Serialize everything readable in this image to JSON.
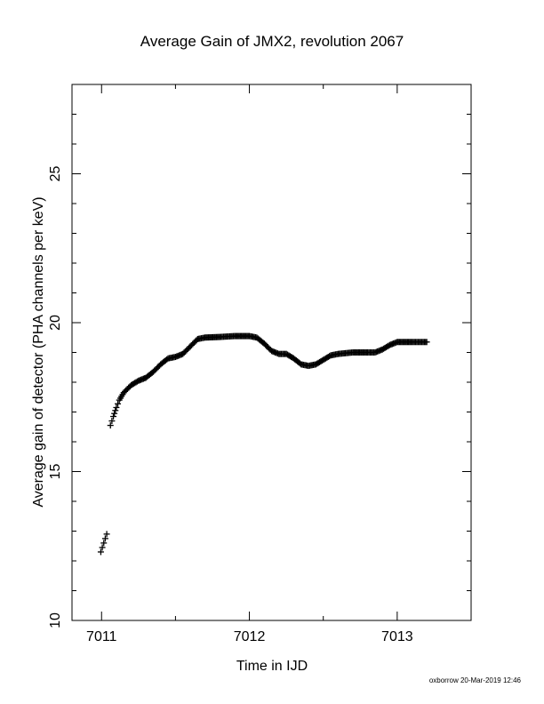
{
  "chart_data": {
    "type": "scatter",
    "title": "Average Gain of JMX2, revolution 2067",
    "xlabel": "Time in IJD",
    "ylabel": "Average gain of detector (PHA channels per keV)",
    "xlim": [
      7010.8,
      7013.5
    ],
    "ylim": [
      10,
      28
    ],
    "x_ticks": [
      7011,
      7012,
      7013
    ],
    "x_tick_labels": [
      "7011",
      "7012",
      "7013"
    ],
    "y_ticks": [
      10,
      15,
      20,
      25
    ],
    "y_tick_labels": [
      "10",
      "15",
      "20",
      "25"
    ],
    "grid": false,
    "marker": "plus",
    "series": [
      {
        "points": [
          [
            7010.995,
            12.3
          ],
          [
            7011.005,
            12.45
          ],
          [
            7011.015,
            12.6
          ],
          [
            7011.025,
            12.75
          ],
          [
            7011.035,
            12.9
          ],
          [
            7011.06,
            16.55
          ],
          [
            7011.08,
            16.85
          ],
          [
            7011.1,
            17.15
          ],
          [
            7011.12,
            17.4
          ],
          [
            7011.15,
            17.65
          ],
          [
            7011.2,
            17.9
          ],
          [
            7011.25,
            18.05
          ],
          [
            7011.3,
            18.15
          ],
          [
            7011.35,
            18.35
          ],
          [
            7011.4,
            18.6
          ],
          [
            7011.45,
            18.8
          ],
          [
            7011.5,
            18.85
          ],
          [
            7011.55,
            18.95
          ],
          [
            7011.6,
            19.2
          ],
          [
            7011.65,
            19.45
          ],
          [
            7011.7,
            19.5
          ],
          [
            7011.8,
            19.52
          ],
          [
            7011.9,
            19.55
          ],
          [
            7012.0,
            19.55
          ],
          [
            7012.05,
            19.5
          ],
          [
            7012.1,
            19.3
          ],
          [
            7012.15,
            19.05
          ],
          [
            7012.2,
            18.95
          ],
          [
            7012.25,
            18.95
          ],
          [
            7012.3,
            18.8
          ],
          [
            7012.35,
            18.6
          ],
          [
            7012.4,
            18.55
          ],
          [
            7012.45,
            18.6
          ],
          [
            7012.5,
            18.75
          ],
          [
            7012.55,
            18.9
          ],
          [
            7012.6,
            18.95
          ],
          [
            7012.7,
            19.0
          ],
          [
            7012.8,
            19.0
          ],
          [
            7012.85,
            19.0
          ],
          [
            7012.9,
            19.1
          ],
          [
            7012.95,
            19.25
          ],
          [
            7013.0,
            19.35
          ],
          [
            7013.1,
            19.35
          ],
          [
            7013.2,
            19.35
          ]
        ]
      }
    ]
  },
  "footer": "oxborrow 20-Mar-2019 12:46"
}
